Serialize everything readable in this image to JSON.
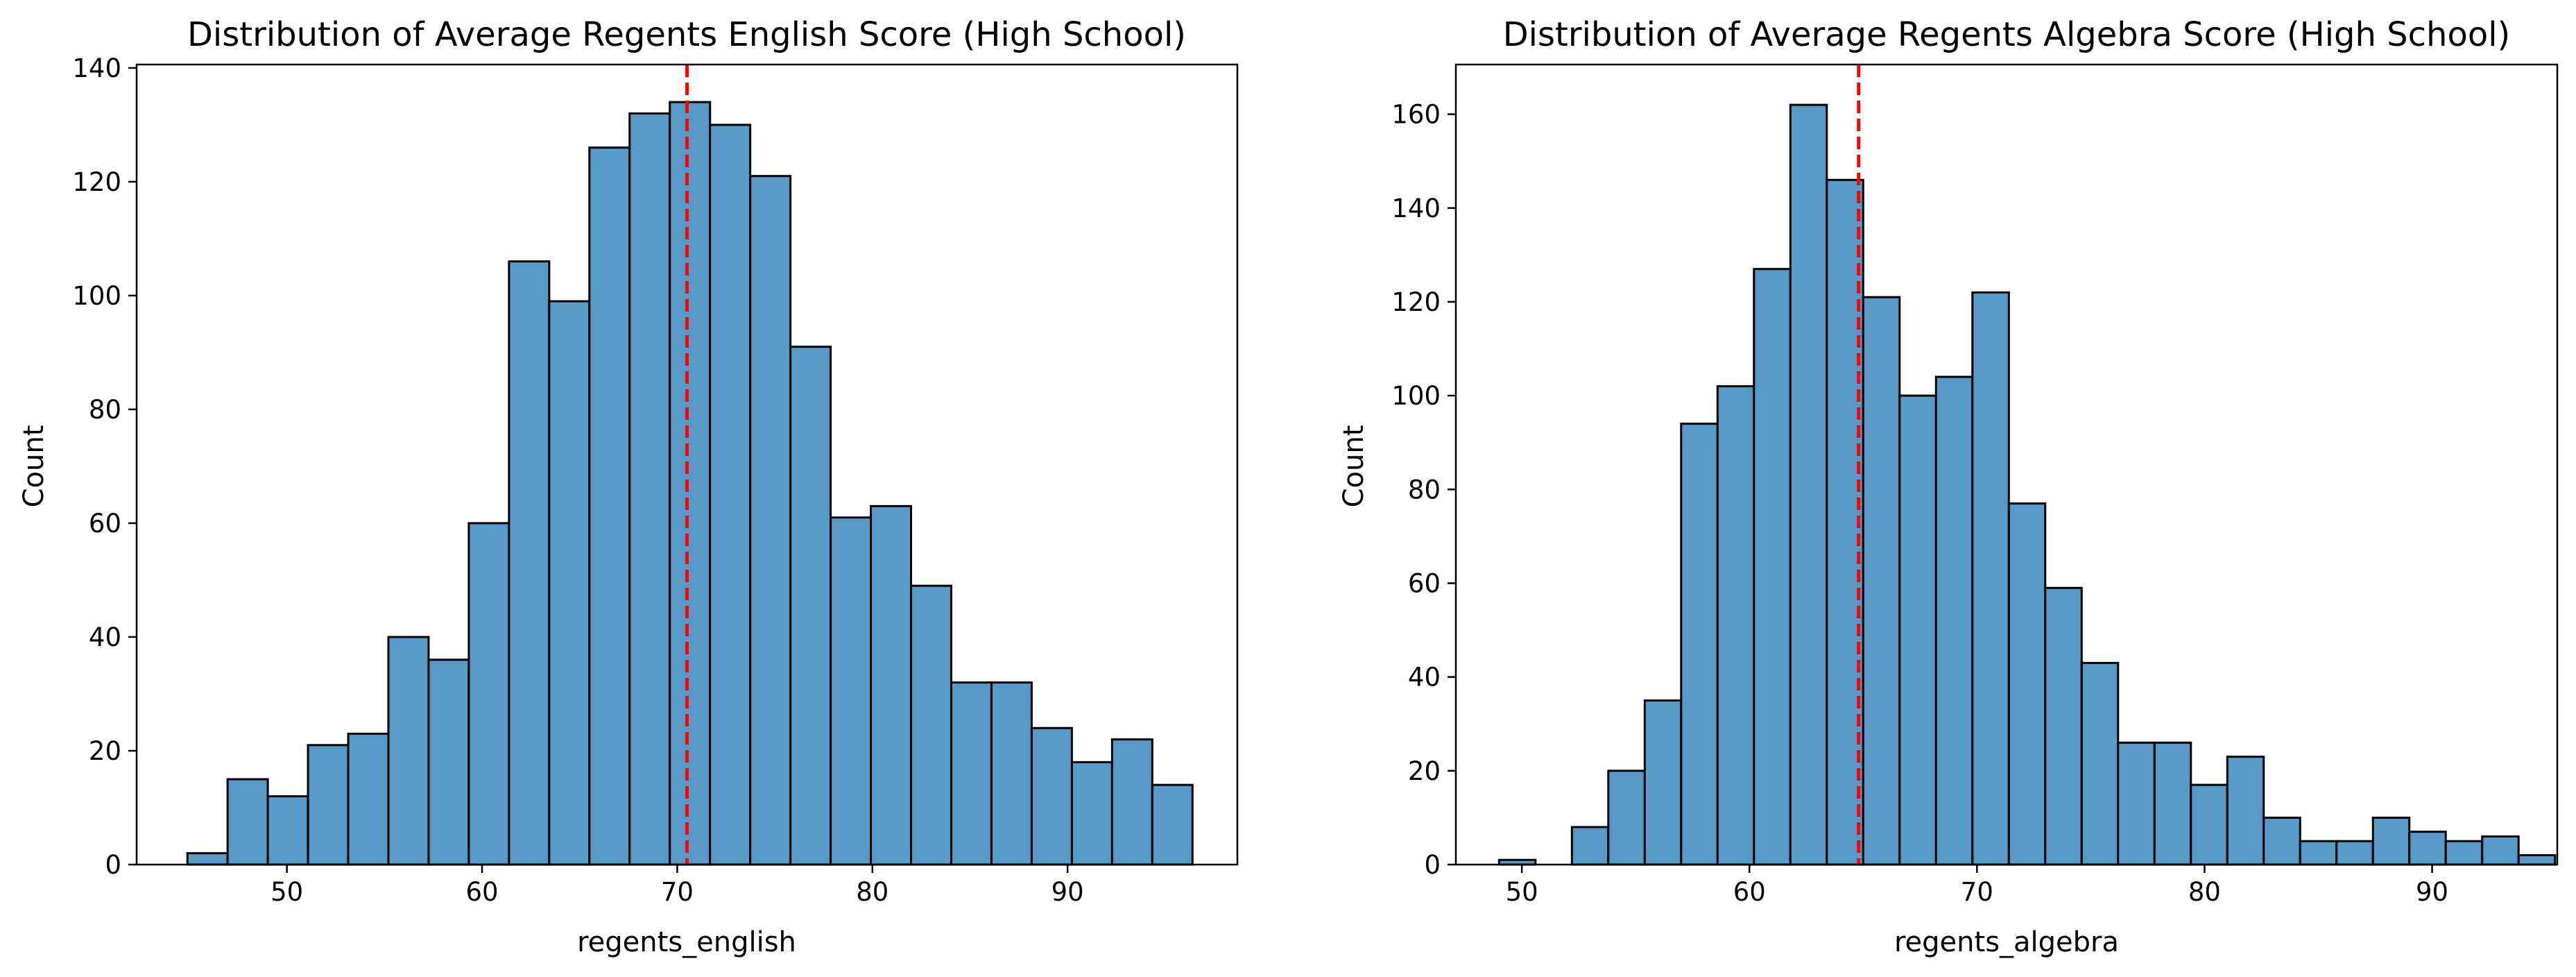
{
  "colors": {
    "bar_fill": "#5799c7",
    "bar_edge": "#000000",
    "mean_line": "#ff0000"
  },
  "chart_data": [
    {
      "type": "bar",
      "subtype": "histogram",
      "title": "Distribution of Average Regents English Score (High School)",
      "xlabel": "regents_english",
      "ylabel": "Count",
      "xlim": [
        42.3,
        98.7
      ],
      "ylim": [
        0,
        140.6
      ],
      "xticks": [
        50,
        60,
        70,
        80,
        90
      ],
      "yticks": [
        0,
        20,
        40,
        60,
        80,
        100,
        120,
        140
      ],
      "bin_start": 44.9,
      "bin_width": 2.06,
      "values": [
        2,
        15,
        12,
        21,
        23,
        40,
        36,
        60,
        106,
        99,
        126,
        132,
        134,
        130,
        121,
        91,
        61,
        63,
        49,
        32,
        32,
        24,
        18,
        22,
        14
      ],
      "mean_line_x": 70.5,
      "grid": false,
      "legend": "none"
    },
    {
      "type": "bar",
      "subtype": "histogram",
      "title": "Distribution of Average Regents Algebra Score (High School)",
      "xlabel": "regents_algebra",
      "ylabel": "Count",
      "xlim": [
        47.1,
        95.5
      ],
      "ylim": [
        0,
        170.6
      ],
      "xticks": [
        50,
        60,
        70,
        80,
        90
      ],
      "yticks": [
        0,
        20,
        40,
        60,
        80,
        100,
        120,
        140,
        160
      ],
      "bin_start": 49.0,
      "bin_width": 1.6,
      "values": [
        1,
        0,
        8,
        20,
        35,
        94,
        102,
        127,
        162,
        146,
        121,
        100,
        104,
        122,
        77,
        59,
        43,
        26,
        26,
        17,
        23,
        10,
        5,
        5,
        10,
        7,
        5,
        6,
        2
      ],
      "mean_line_x": 64.8,
      "grid": false,
      "legend": "none"
    }
  ]
}
